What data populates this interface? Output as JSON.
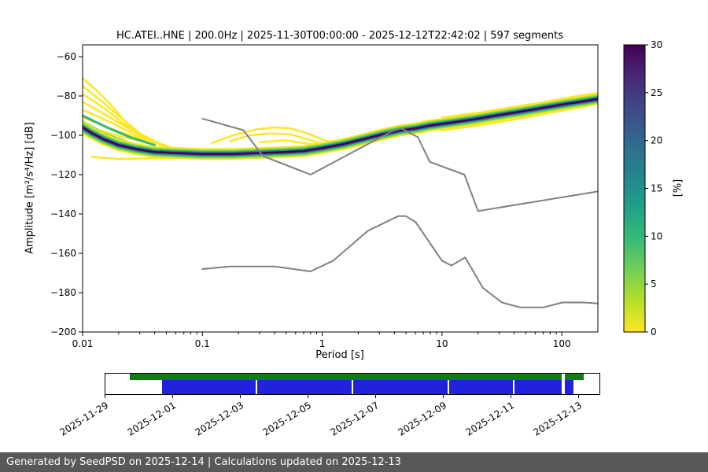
{
  "footer": {
    "text": "Generated by SeedPSD on 2025-12-14 | Calculations updated on 2025-12-13",
    "background": "#58585a",
    "text_color": "#ffffff"
  },
  "chart_data": {
    "type": "heatmap",
    "title": "HC.ATEI..HNE | 200.0Hz | 2025-11-30T00:00:00 - 2025-12-12T22:42:02 | 597 segments",
    "xlabel": "Period [s]",
    "ylabel": "Amplitude [m²/s⁴/Hz] [dB]",
    "xscale": "log",
    "xlim": [
      0.01,
      200
    ],
    "ylim": [
      -200,
      -54
    ],
    "grid": false,
    "legend": "none",
    "xticks": [
      {
        "v": 0.01,
        "label": "0.01"
      },
      {
        "v": 0.1,
        "label": "0.1"
      },
      {
        "v": 1,
        "label": "1"
      },
      {
        "v": 10,
        "label": "10"
      },
      {
        "v": 100,
        "label": "100"
      }
    ],
    "yticks": [
      {
        "v": -60,
        "label": "−60"
      },
      {
        "v": -80,
        "label": "−80"
      },
      {
        "v": -100,
        "label": "−100"
      },
      {
        "v": -120,
        "label": "−120"
      },
      {
        "v": -140,
        "label": "−140"
      },
      {
        "v": -160,
        "label": "−160"
      },
      {
        "v": -180,
        "label": "−180"
      },
      {
        "v": -200,
        "label": "−200"
      }
    ],
    "colorbar": {
      "label": "[%]",
      "min": 0,
      "max": 30,
      "ticks": [
        0,
        5,
        10,
        15,
        20,
        25,
        30
      ],
      "colors_low_to_high": [
        "#fde725",
        "#b5de2b",
        "#6ece58",
        "#35b779",
        "#1f9e89",
        "#26828e",
        "#31688e",
        "#3e4989",
        "#482878",
        "#440154"
      ]
    },
    "ppsd": {
      "description": "Probabilistic PSD: probability [%] of amplitude per period; dark ridge = most probable level",
      "mode": [
        [
          0.01,
          -96
        ],
        [
          0.012,
          -99
        ],
        [
          0.015,
          -102
        ],
        [
          0.02,
          -105
        ],
        [
          0.028,
          -107
        ],
        [
          0.04,
          -108.5
        ],
        [
          0.06,
          -109
        ],
        [
          0.1,
          -109.5
        ],
        [
          0.18,
          -109.5
        ],
        [
          0.3,
          -109
        ],
        [
          0.5,
          -108.5
        ],
        [
          0.7,
          -108
        ],
        [
          1.0,
          -106.5
        ],
        [
          1.5,
          -104.5
        ],
        [
          2.2,
          -102
        ],
        [
          3.2,
          -99.5
        ],
        [
          4.5,
          -97.5
        ],
        [
          6.0,
          -96.5
        ],
        [
          8.0,
          -95
        ],
        [
          12.0,
          -93.5
        ],
        [
          18.0,
          -92
        ],
        [
          28.0,
          -90
        ],
        [
          45.0,
          -88
        ],
        [
          70.0,
          -86
        ],
        [
          110.0,
          -84
        ],
        [
          160.0,
          -82.5
        ],
        [
          200.0,
          -81.5
        ]
      ],
      "layers": [
        {
          "color": "#fde725",
          "width": 15
        },
        {
          "color": "#b5de2b",
          "width": 12
        },
        {
          "color": "#6ece58",
          "width": 9.5
        },
        {
          "color": "#35b779",
          "width": 7.5
        },
        {
          "color": "#26828e",
          "width": 5.5
        },
        {
          "color": "#31688e",
          "width": 4
        },
        {
          "color": "#440154",
          "width": 2.6
        }
      ],
      "extra_lines": [
        {
          "color": "#fde725",
          "width": 2.5,
          "points": [
            [
              0.01,
              -71
            ],
            [
              0.013,
              -77
            ],
            [
              0.017,
              -84
            ],
            [
              0.022,
              -92
            ],
            [
              0.03,
              -100
            ],
            [
              0.045,
              -105
            ],
            [
              0.07,
              -108
            ]
          ]
        },
        {
          "color": "#fde725",
          "width": 2.5,
          "points": [
            [
              0.01,
              -75
            ],
            [
              0.014,
              -82
            ],
            [
              0.02,
              -90
            ],
            [
              0.03,
              -99
            ],
            [
              0.05,
              -106
            ]
          ]
        },
        {
          "color": "#fde725",
          "width": 2.5,
          "points": [
            [
              0.01,
              -79
            ],
            [
              0.015,
              -86
            ],
            [
              0.022,
              -94
            ],
            [
              0.035,
              -102
            ],
            [
              0.06,
              -107
            ]
          ]
        },
        {
          "color": "#fde725",
          "width": 2.5,
          "points": [
            [
              0.01,
              -83
            ],
            [
              0.016,
              -90
            ],
            [
              0.025,
              -97
            ],
            [
              0.04,
              -104
            ]
          ]
        },
        {
          "color": "#fde725",
          "width": 2.5,
          "points": [
            [
              0.01,
              -87
            ],
            [
              0.018,
              -94
            ],
            [
              0.03,
              -101
            ],
            [
              0.05,
              -105.5
            ]
          ]
        },
        {
          "color": "#fde725",
          "width": 2.5,
          "points": [
            [
              0.01,
              -91
            ],
            [
              0.02,
              -98
            ],
            [
              0.035,
              -103
            ]
          ]
        },
        {
          "color": "#fde725",
          "width": 2.5,
          "points": [
            [
              0.01,
              -95
            ],
            [
              0.022,
              -101
            ],
            [
              0.04,
              -104.5
            ]
          ]
        },
        {
          "color": "#fde725",
          "width": 2.5,
          "points": [
            [
              0.012,
              -111
            ],
            [
              0.02,
              -112
            ],
            [
              0.06,
              -111.5
            ],
            [
              0.15,
              -111.5
            ],
            [
              0.3,
              -111
            ]
          ]
        },
        {
          "color": "#fde725",
          "width": 2.5,
          "points": [
            [
              0.12,
              -104
            ],
            [
              0.18,
              -100
            ],
            [
              0.28,
              -97
            ],
            [
              0.4,
              -96
            ],
            [
              0.55,
              -96.5
            ],
            [
              0.75,
              -99
            ],
            [
              1.0,
              -102
            ],
            [
              1.3,
              -104.5
            ]
          ]
        },
        {
          "color": "#fde725",
          "width": 2.5,
          "points": [
            [
              0.17,
              -103
            ],
            [
              0.25,
              -100
            ],
            [
              0.38,
              -99
            ],
            [
              0.55,
              -99.5
            ],
            [
              0.8,
              -102.5
            ],
            [
              1.1,
              -105
            ]
          ]
        },
        {
          "color": "#fde725",
          "width": 2.5,
          "points": [
            [
              0.3,
              -103.5
            ],
            [
              0.5,
              -102.5
            ],
            [
              0.8,
              -104.5
            ],
            [
              1.5,
              -103.5
            ],
            [
              2.5,
              -101
            ],
            [
              3.5,
              -99
            ]
          ]
        },
        {
          "color": "#fde725",
          "width": 2.5,
          "points": [
            [
              10,
              -97.5
            ],
            [
              20,
              -95
            ],
            [
              40,
              -92
            ],
            [
              80,
              -88.5
            ],
            [
              150,
              -85.5
            ],
            [
              200,
              -84
            ]
          ]
        },
        {
          "color": "#fde725",
          "width": 2.5,
          "points": [
            [
              10,
              -91
            ],
            [
              20,
              -88.5
            ],
            [
              40,
              -85.5
            ],
            [
              80,
              -82.5
            ],
            [
              150,
              -79.5
            ],
            [
              200,
              -78.5
            ]
          ]
        },
        {
          "color": "#6ece58",
          "width": 3,
          "points": [
            [
              0.01,
              -93
            ],
            [
              0.015,
              -99
            ],
            [
              0.025,
              -104
            ],
            [
              0.04,
              -107
            ]
          ]
        },
        {
          "color": "#6ece58",
          "width": 3,
          "points": [
            [
              0.01,
              -98
            ],
            [
              0.018,
              -103
            ],
            [
              0.03,
              -106
            ]
          ]
        },
        {
          "color": "#35b779",
          "width": 3,
          "points": [
            [
              0.01,
              -90
            ],
            [
              0.016,
              -96
            ],
            [
              0.025,
              -101
            ],
            [
              0.04,
              -105
            ]
          ]
        }
      ]
    },
    "noise_models": {
      "color": "#808080",
      "width": 2,
      "high_noise_model": [
        [
          0.1,
          -91.5
        ],
        [
          0.22,
          -97.4
        ],
        [
          0.32,
          -110.5
        ],
        [
          0.8,
          -120.0
        ],
        [
          3.8,
          -98.0
        ],
        [
          4.6,
          -96.5
        ],
        [
          6.3,
          -101.0
        ],
        [
          7.9,
          -113.5
        ],
        [
          15.4,
          -120.0
        ],
        [
          20.0,
          -138.5
        ],
        [
          200.0,
          -128.5
        ]
      ],
      "low_noise_model": [
        [
          0.1,
          -168.0
        ],
        [
          0.17,
          -166.7
        ],
        [
          0.4,
          -166.7
        ],
        [
          0.8,
          -169.2
        ],
        [
          1.24,
          -163.7
        ],
        [
          2.4,
          -148.6
        ],
        [
          4.3,
          -141.1
        ],
        [
          5.0,
          -141.1
        ],
        [
          6.0,
          -144.0
        ],
        [
          10.0,
          -163.8
        ],
        [
          12.0,
          -166.2
        ],
        [
          15.6,
          -162.1
        ],
        [
          21.9,
          -177.5
        ],
        [
          31.6,
          -185.0
        ],
        [
          45.0,
          -187.5
        ],
        [
          70.0,
          -187.5
        ],
        [
          101.0,
          -185.0
        ],
        [
          154.0,
          -185.0
        ],
        [
          200.0,
          -185.5
        ]
      ]
    }
  },
  "timeline": {
    "labels": [
      "2025-11-29",
      "2025-12-01",
      "2025-12-03",
      "2025-12-05",
      "2025-12-07",
      "2025-12-09",
      "2025-12-11",
      "2025-12-13"
    ],
    "tick_positions_pct": [
      0,
      13.65,
      27.3,
      40.95,
      54.6,
      68.25,
      81.9,
      95.55
    ],
    "green_color": "#0f7d0f",
    "blue_color": "#2222dd",
    "green_segments_pct": [
      [
        4.9,
        92.4
      ],
      [
        93.0,
        96.8
      ]
    ],
    "blue_segments_pct": [
      [
        11.4,
        30.4
      ],
      [
        30.7,
        49.8
      ],
      [
        50.1,
        69.3
      ],
      [
        69.6,
        82.5
      ],
      [
        82.8,
        92.4
      ],
      [
        93.0,
        94.8
      ]
    ]
  }
}
